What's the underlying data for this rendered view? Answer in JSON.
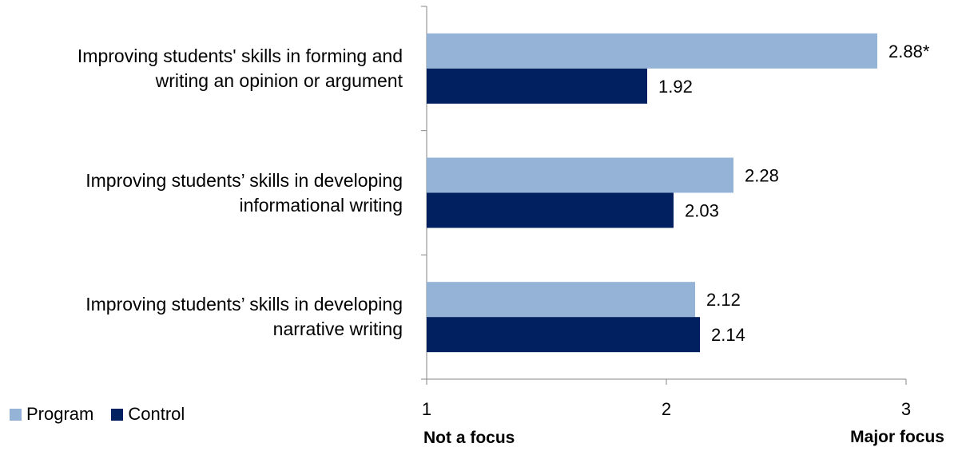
{
  "chart_data": {
    "type": "bar",
    "orientation": "horizontal",
    "categories": [
      "Improving students' skills in forming and writing an opinion or argument",
      "Improving students’ skills in developing informational writing",
      "Improving students’ skills in developing narrative writing"
    ],
    "category_lines": [
      [
        "Improving students' skills in forming and",
        "writing an opinion or argument"
      ],
      [
        "Improving students’ skills in developing",
        "informational writing"
      ],
      [
        "Improving students’ skills in developing",
        "narrative writing"
      ]
    ],
    "series": [
      {
        "name": "Program",
        "color": "#95B3D7",
        "values": [
          2.88,
          2.28,
          2.12
        ],
        "labels": [
          "2.88*",
          "2.28",
          "2.12"
        ]
      },
      {
        "name": "Control",
        "color": "#002060",
        "values": [
          1.92,
          2.03,
          2.14
        ],
        "labels": [
          "1.92",
          "2.03",
          "2.14"
        ]
      }
    ],
    "xlim": [
      1,
      3
    ],
    "xticks": [
      "1",
      "2",
      "3"
    ],
    "x_low_label": "Not a focus",
    "x_high_label": "Major focus",
    "legend_position": "bottom-left",
    "grid": false
  }
}
